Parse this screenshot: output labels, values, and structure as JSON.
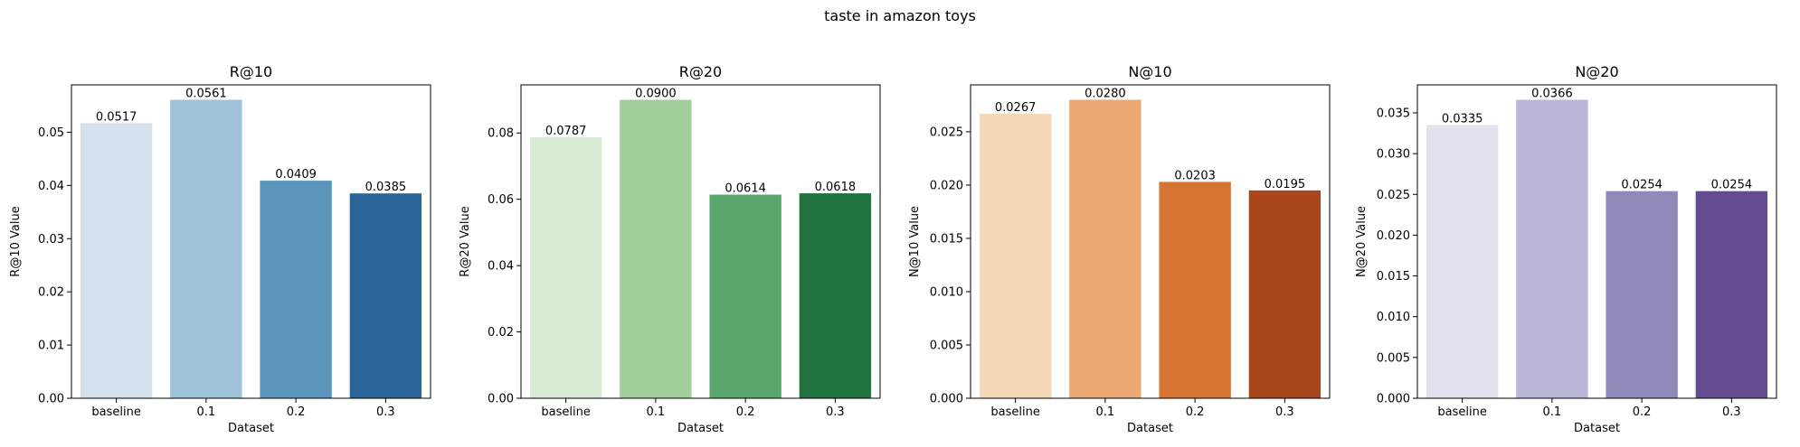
{
  "suptitle": "taste in amazon toys",
  "chart_data": [
    {
      "type": "bar",
      "title": "R@10",
      "xlabel": "Dataset",
      "ylabel": "R@10 Value",
      "categories": [
        "baseline",
        "0.1",
        "0.2",
        "0.3"
      ],
      "values": [
        0.0517,
        0.0561,
        0.0409,
        0.0385
      ],
      "value_labels": [
        "0.0517",
        "0.0561",
        "0.0409",
        "0.0385"
      ],
      "ylim": [
        0,
        0.0589
      ],
      "yticks": [
        0.0,
        0.01,
        0.02,
        0.03,
        0.04,
        0.05
      ],
      "ytick_labels": [
        "0.00",
        "0.01",
        "0.02",
        "0.03",
        "0.04",
        "0.05"
      ],
      "colors": [
        "#d3e1ef",
        "#9ec3d9",
        "#5b95bc",
        "#2a6499"
      ],
      "grid": false
    },
    {
      "type": "bar",
      "title": "R@20",
      "xlabel": "Dataset",
      "ylabel": "R@20 Value",
      "categories": [
        "baseline",
        "0.1",
        "0.2",
        "0.3"
      ],
      "values": [
        0.0787,
        0.09,
        0.0614,
        0.0618
      ],
      "value_labels": [
        "0.0787",
        "0.0900",
        "0.0614",
        "0.0618"
      ],
      "ylim": [
        0,
        0.0945
      ],
      "yticks": [
        0.0,
        0.02,
        0.04,
        0.06,
        0.08
      ],
      "ytick_labels": [
        "0.00",
        "0.02",
        "0.04",
        "0.06",
        "0.08"
      ],
      "colors": [
        "#d7ecd3",
        "#a1ce9b",
        "#58a66b",
        "#20733f"
      ],
      "grid": false
    },
    {
      "type": "bar",
      "title": "N@10",
      "xlabel": "Dataset",
      "ylabel": "N@10 Value",
      "categories": [
        "baseline",
        "0.1",
        "0.2",
        "0.3"
      ],
      "values": [
        0.0267,
        0.028,
        0.0203,
        0.0195
      ],
      "value_labels": [
        "0.0267",
        "0.0280",
        "0.0203",
        "0.0195"
      ],
      "ylim": [
        0,
        0.0294
      ],
      "yticks": [
        0.0,
        0.005,
        0.01,
        0.015,
        0.02,
        0.025
      ],
      "ytick_labels": [
        "0.000",
        "0.005",
        "0.010",
        "0.015",
        "0.020",
        "0.025"
      ],
      "colors": [
        "#f5d8b8",
        "#eba874",
        "#d67434",
        "#a8471b"
      ],
      "grid": false
    },
    {
      "type": "bar",
      "title": "N@20",
      "xlabel": "Dataset",
      "ylabel": "N@20 Value",
      "categories": [
        "baseline",
        "0.1",
        "0.2",
        "0.3"
      ],
      "values": [
        0.0335,
        0.0366,
        0.0254,
        0.0254
      ],
      "value_labels": [
        "0.0335",
        "0.0366",
        "0.0254",
        "0.0254"
      ],
      "ylim": [
        0,
        0.03843
      ],
      "yticks": [
        0.0,
        0.005,
        0.01,
        0.015,
        0.02,
        0.025,
        0.03,
        0.035
      ],
      "ytick_labels": [
        "0.000",
        "0.005",
        "0.010",
        "0.015",
        "0.020",
        "0.025",
        "0.030",
        "0.035"
      ],
      "colors": [
        "#e2e1ee",
        "#b8b7d7",
        "#8d89b9",
        "#624b8f"
      ],
      "grid": false
    }
  ]
}
